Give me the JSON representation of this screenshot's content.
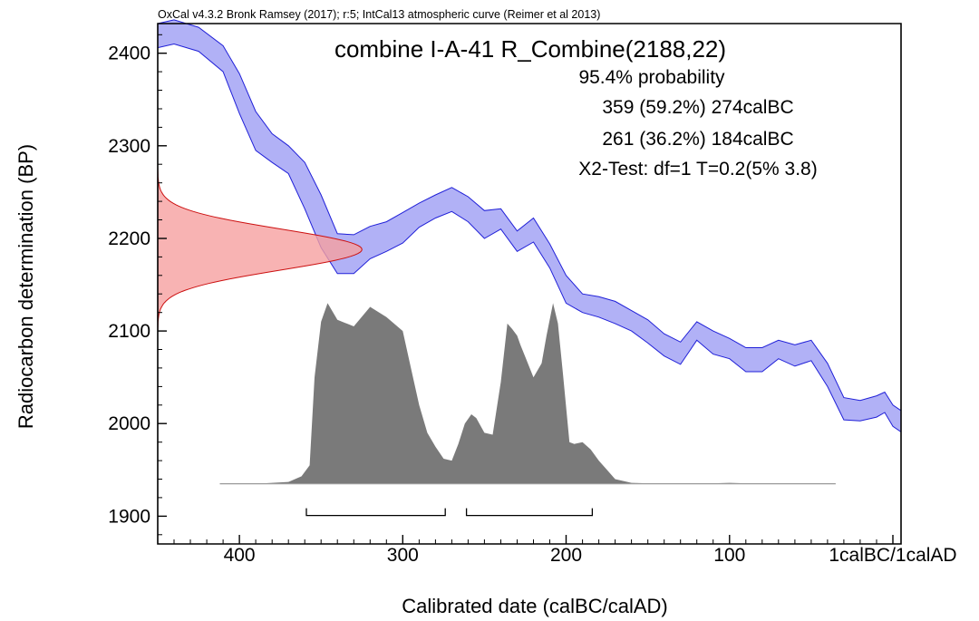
{
  "chart_data": {
    "type": "area",
    "header": "OxCal v4.3.2 Bronk Ramsey (2017); r:5; IntCal13 atmospheric curve (Reimer et al 2013)",
    "title": "combine I-A-41 R_Combine(2188,22)",
    "annotations": [
      "95.4% probability",
      "359 (59.2%) 274calBC",
      "261 (36.2%) 184calBC",
      "X2-Test: df=1 T=0.2(5% 3.8)"
    ],
    "xlabel": "Calibrated date (calBC/calAD)",
    "ylabel": "Radiocarbon determination (BP)",
    "x_direction": "decreasing calBC (older dates on the left)",
    "xlim": [
      450,
      -5
    ],
    "ylim": [
      1870,
      2432
    ],
    "x_ticks": [
      {
        "value": 400,
        "label": "400"
      },
      {
        "value": 300,
        "label": "300"
      },
      {
        "value": 200,
        "label": "200"
      },
      {
        "value": 100,
        "label": "100"
      },
      {
        "value": 0,
        "label": "1calBC/1calAD"
      }
    ],
    "y_ticks": [
      {
        "value": 1900,
        "label": "1900"
      },
      {
        "value": 2000,
        "label": "2000"
      },
      {
        "value": 2100,
        "label": "2100"
      },
      {
        "value": 2200,
        "label": "2200"
      },
      {
        "value": 2300,
        "label": "2300"
      },
      {
        "value": 2400,
        "label": "2400"
      }
    ],
    "grid": false,
    "colors": {
      "calibration_fill": "#aaaaf5",
      "calibration_stroke": "#2020d8",
      "measurement_fill": "#f6a0a0",
      "measurement_stroke": "#cc1010",
      "posterior_fill": "#7a7a7a"
    },
    "calibration_curve": {
      "x": [
        450,
        440,
        425,
        410,
        400,
        390,
        380,
        370,
        360,
        350,
        340,
        330,
        320,
        310,
        300,
        290,
        280,
        270,
        260,
        250,
        240,
        230,
        220,
        210,
        200,
        190,
        180,
        170,
        160,
        150,
        140,
        130,
        120,
        110,
        100,
        90,
        80,
        70,
        60,
        50,
        40,
        30,
        20,
        10,
        5,
        0,
        -5
      ],
      "upper": [
        2432,
        2436,
        2428,
        2408,
        2378,
        2337,
        2313,
        2300,
        2282,
        2247,
        2205,
        2204,
        2213,
        2218,
        2228,
        2238,
        2247,
        2255,
        2245,
        2230,
        2232,
        2208,
        2222,
        2194,
        2160,
        2140,
        2137,
        2132,
        2122,
        2112,
        2097,
        2088,
        2110,
        2100,
        2092,
        2082,
        2082,
        2090,
        2085,
        2090,
        2065,
        2028,
        2025,
        2030,
        2034,
        2020,
        2014
      ],
      "lower": [
        2406,
        2410,
        2402,
        2380,
        2335,
        2295,
        2282,
        2270,
        2232,
        2190,
        2162,
        2162,
        2178,
        2186,
        2195,
        2212,
        2222,
        2229,
        2218,
        2200,
        2210,
        2186,
        2196,
        2168,
        2130,
        2120,
        2115,
        2108,
        2100,
        2087,
        2073,
        2064,
        2090,
        2075,
        2070,
        2056,
        2056,
        2070,
        2062,
        2068,
        2040,
        2004,
        2003,
        2007,
        2012,
        1997,
        1991
      ]
    },
    "measurement_distribution": {
      "mean_bp": 2188,
      "error_bp": 22,
      "x_start": 450,
      "peak_x": 325
    },
    "posterior_distribution": {
      "baseline_bp": 1935,
      "x": [
        412,
        390,
        370,
        362,
        357,
        354,
        350,
        346,
        340,
        330,
        320,
        310,
        300,
        295,
        290,
        285,
        280,
        275,
        270,
        266,
        262,
        258,
        255,
        250,
        245,
        240,
        236,
        233,
        230,
        228,
        225,
        220,
        215,
        212,
        208,
        205,
        202,
        198,
        195,
        190,
        185,
        180,
        175,
        170,
        160,
        140,
        120,
        100,
        80,
        60,
        40,
        35
      ],
      "value": [
        1935,
        1935,
        1937,
        1943,
        1955,
        2050,
        2110,
        2130,
        2112,
        2105,
        2126,
        2115,
        2100,
        2060,
        2020,
        1990,
        1975,
        1962,
        1960,
        1978,
        2000,
        2010,
        2006,
        1990,
        1988,
        2045,
        2108,
        2102,
        2095,
        2085,
        2072,
        2050,
        2065,
        2095,
        2130,
        2108,
        2055,
        1980,
        1978,
        1980,
        1972,
        1960,
        1950,
        1940,
        1936,
        1935,
        1935,
        1936,
        1935,
        1935,
        1935,
        1935
      ]
    },
    "ranges_95": [
      {
        "from": 359,
        "to": 274
      },
      {
        "from": 261,
        "to": 184
      }
    ]
  }
}
